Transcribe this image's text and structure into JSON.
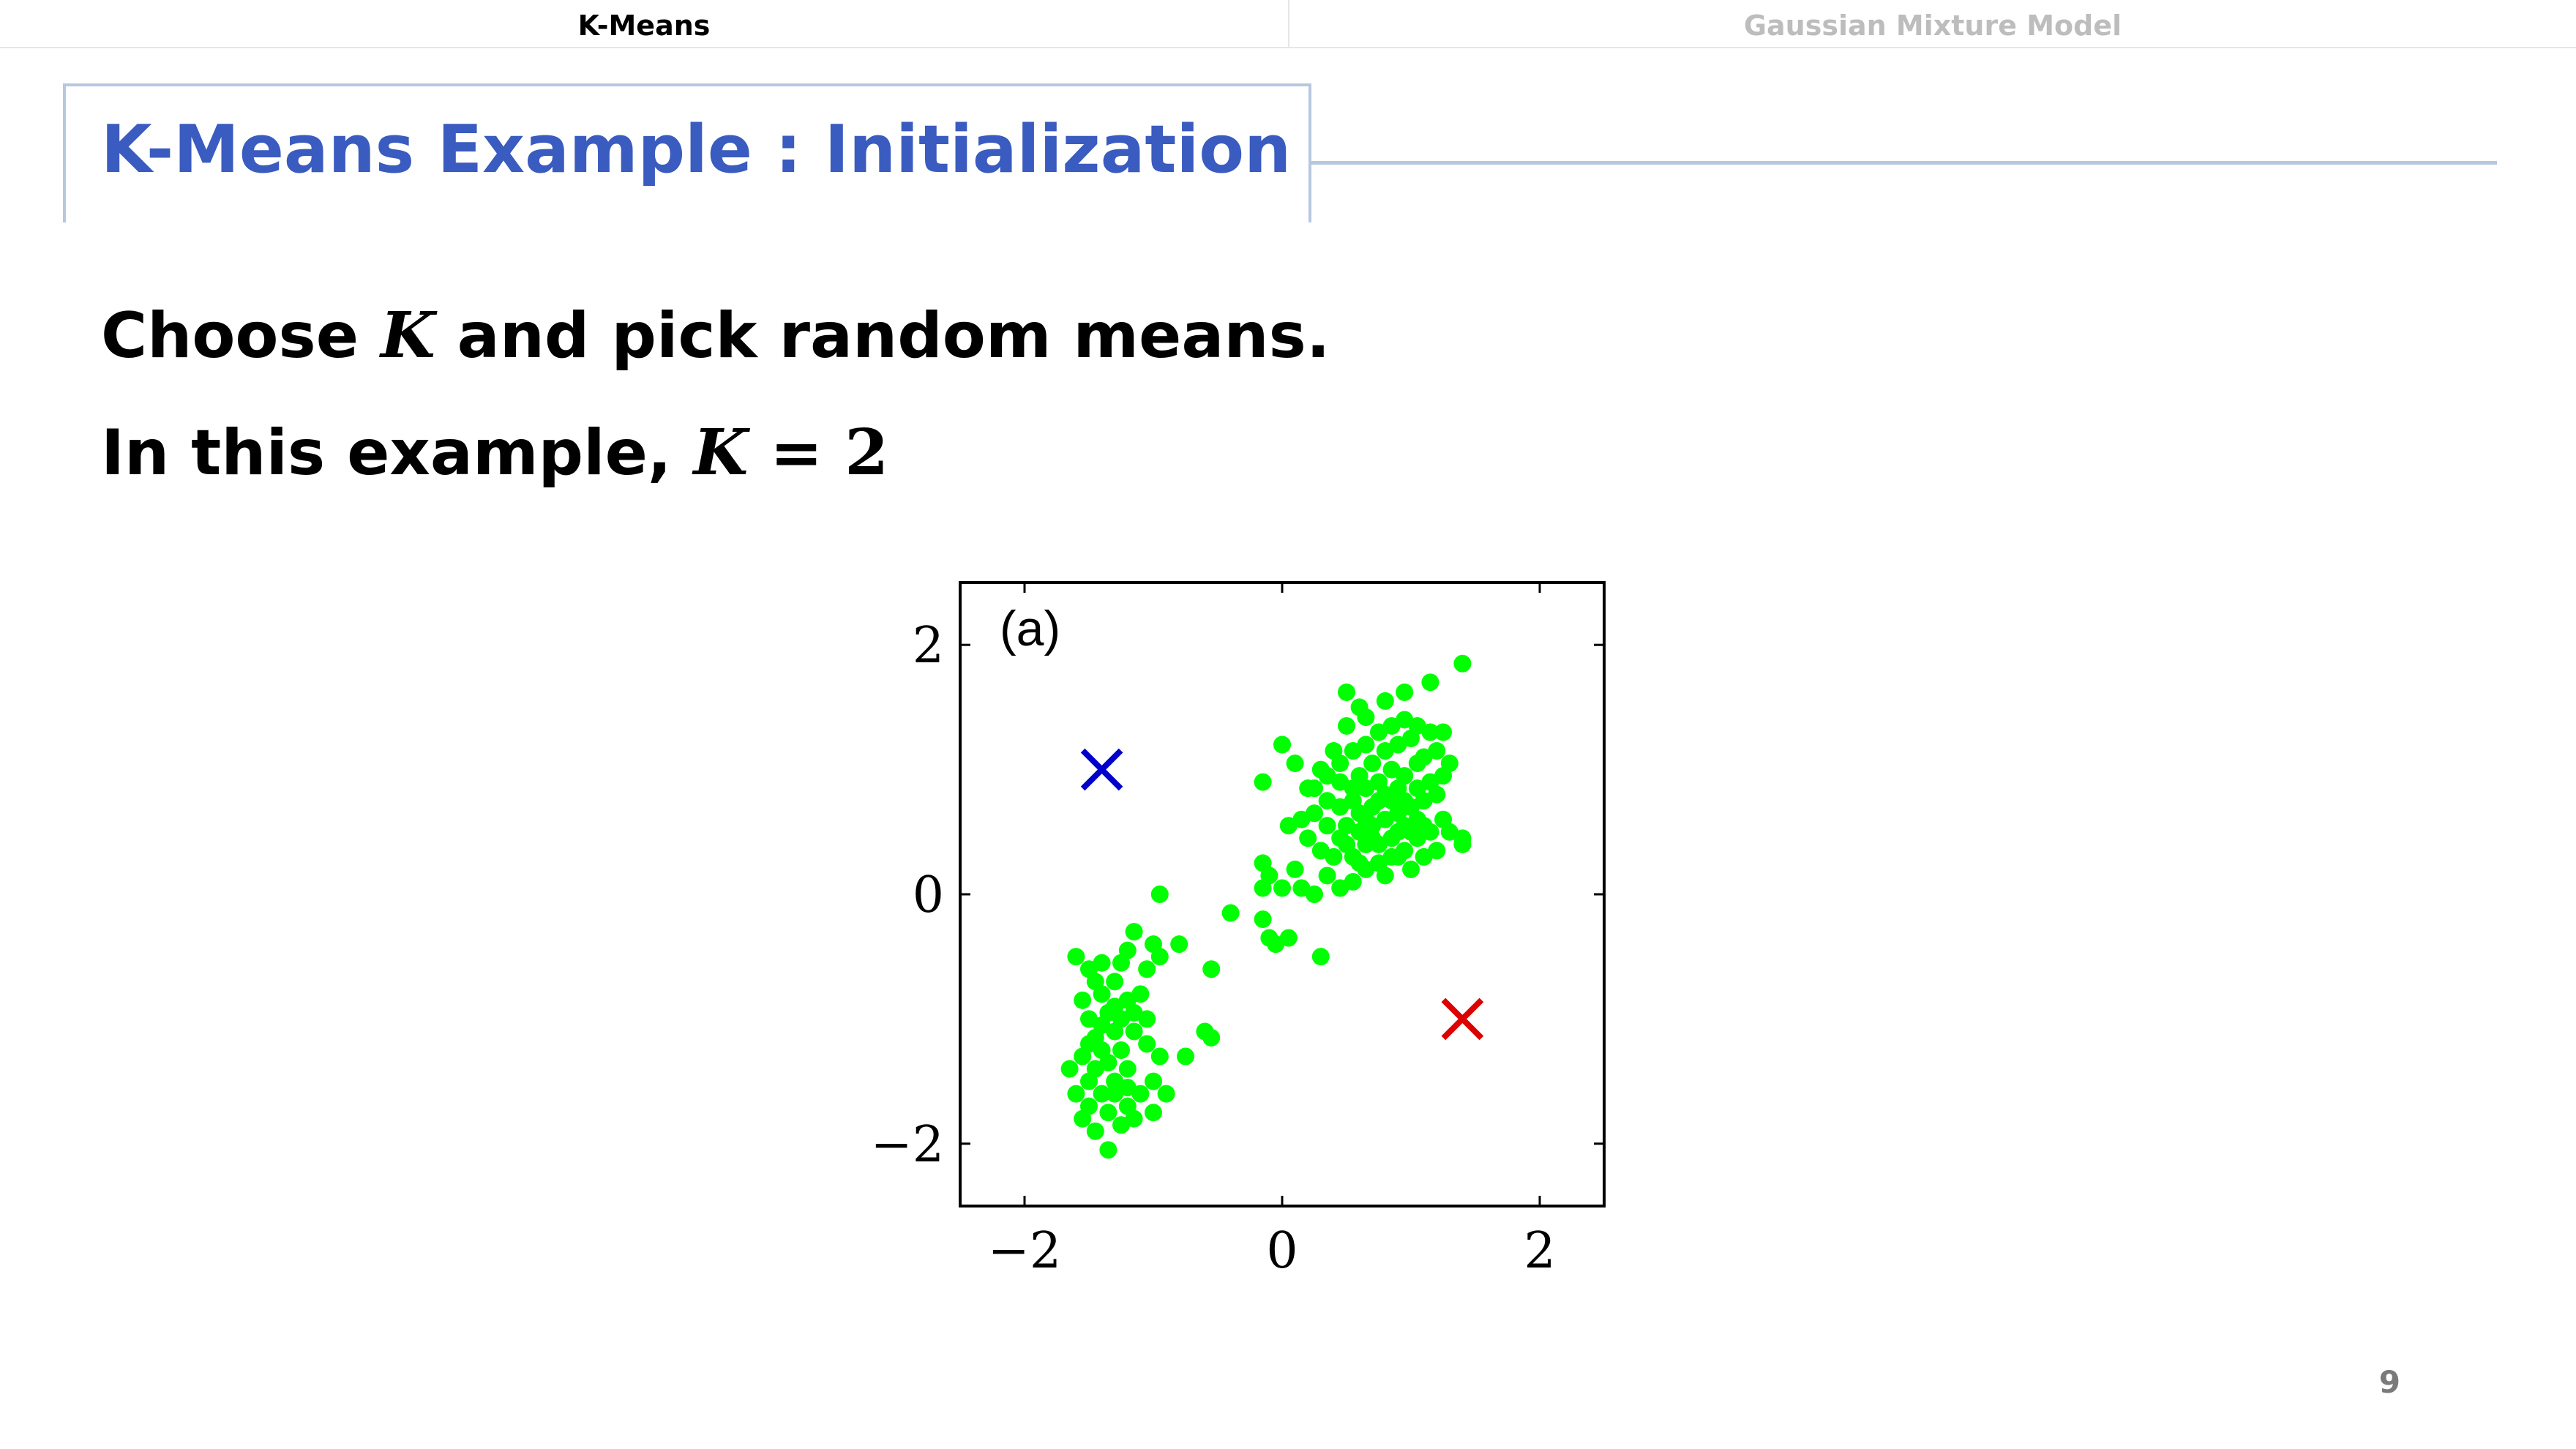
{
  "nav": {
    "tabs": [
      {
        "label": "K-Means",
        "active": true
      },
      {
        "label": "Gaussian Mixture Model",
        "active": false
      }
    ]
  },
  "slide": {
    "title": "K-Means Example : Initialization",
    "line1": {
      "before": "Choose ",
      "math": "K",
      "after": " and pick random means."
    },
    "line2": {
      "before": "In this example, ",
      "math_var": "K",
      "math_rest": " = 2"
    },
    "page_number": "9"
  },
  "colors": {
    "title": "#3a5bbf",
    "frame": "#b8c7e0",
    "points": "#00ff00",
    "mean_1": "#0000cc",
    "mean_2": "#dd0000"
  },
  "chart_data": {
    "type": "scatter",
    "panel_label": "(a)",
    "xlim": [
      -2.5,
      2.5
    ],
    "ylim": [
      -2.5,
      2.5
    ],
    "xticks": [
      -2,
      0,
      2
    ],
    "yticks": [
      -2,
      0,
      2
    ],
    "grid": false,
    "series": [
      {
        "marker": "circle",
        "color": "#00ff00",
        "points": [
          [
            -1.6,
            -0.5
          ],
          [
            -1.5,
            -0.6
          ],
          [
            -1.45,
            -0.7
          ],
          [
            -1.55,
            -0.85
          ],
          [
            -1.4,
            -0.8
          ],
          [
            -1.35,
            -0.95
          ],
          [
            -1.5,
            -1.0
          ],
          [
            -1.3,
            -0.7
          ],
          [
            -1.25,
            -0.55
          ],
          [
            -1.2,
            -0.45
          ],
          [
            -1.15,
            -0.3
          ],
          [
            -1.2,
            -0.85
          ],
          [
            -1.1,
            -0.8
          ],
          [
            -1.05,
            -1.0
          ],
          [
            -1.15,
            -1.1
          ],
          [
            -1.3,
            -1.1
          ],
          [
            -1.4,
            -1.05
          ],
          [
            -1.5,
            -1.2
          ],
          [
            -1.55,
            -1.3
          ],
          [
            -1.45,
            -1.4
          ],
          [
            -1.35,
            -1.35
          ],
          [
            -1.25,
            -1.25
          ],
          [
            -1.2,
            -1.4
          ],
          [
            -1.3,
            -1.5
          ],
          [
            -1.4,
            -1.6
          ],
          [
            -1.5,
            -1.7
          ],
          [
            -1.55,
            -1.8
          ],
          [
            -1.45,
            -1.9
          ],
          [
            -1.35,
            -2.05
          ],
          [
            -1.25,
            -1.85
          ],
          [
            -1.2,
            -1.7
          ],
          [
            -1.1,
            -1.6
          ],
          [
            -1.0,
            -1.5
          ],
          [
            -0.95,
            -1.3
          ],
          [
            -1.05,
            -1.2
          ],
          [
            -0.9,
            -1.6
          ],
          [
            -1.0,
            -1.75
          ],
          [
            -1.15,
            -1.8
          ],
          [
            -1.65,
            -1.4
          ],
          [
            -1.5,
            -1.5
          ],
          [
            -1.4,
            -1.25
          ],
          [
            -1.3,
            -0.9
          ],
          [
            -1.05,
            -0.6
          ],
          [
            -0.95,
            -0.5
          ],
          [
            -1.0,
            -0.4
          ],
          [
            -0.8,
            -0.4
          ],
          [
            -0.75,
            -1.3
          ],
          [
            -0.6,
            -1.1
          ],
          [
            -0.55,
            -1.15
          ],
          [
            -0.95,
            0.0
          ],
          [
            -1.2,
            -1.55
          ],
          [
            -1.35,
            -1.75
          ],
          [
            -1.25,
            -1.0
          ],
          [
            -1.4,
            -0.55
          ],
          [
            -1.6,
            -1.6
          ],
          [
            -1.45,
            -1.15
          ],
          [
            -1.15,
            -0.95
          ],
          [
            -1.3,
            -1.6
          ],
          [
            -0.55,
            -0.6
          ],
          [
            -0.4,
            -0.15
          ],
          [
            -0.15,
            -0.2
          ],
          [
            -0.1,
            -0.35
          ],
          [
            0.05,
            -0.35
          ],
          [
            0.3,
            -0.5
          ],
          [
            -0.05,
            -0.4
          ],
          [
            -0.15,
            0.05
          ],
          [
            0.0,
            0.05
          ],
          [
            0.1,
            0.2
          ],
          [
            -0.15,
            0.25
          ],
          [
            -0.15,
            0.9
          ],
          [
            0.0,
            1.2
          ],
          [
            0.1,
            1.05
          ],
          [
            0.2,
            0.85
          ],
          [
            0.35,
            0.95
          ],
          [
            0.45,
            1.05
          ],
          [
            0.55,
            1.15
          ],
          [
            0.65,
            1.2
          ],
          [
            0.75,
            1.3
          ],
          [
            0.85,
            1.35
          ],
          [
            0.95,
            1.4
          ],
          [
            1.05,
            1.35
          ],
          [
            1.15,
            1.3
          ],
          [
            1.25,
            1.3
          ],
          [
            0.5,
            1.35
          ],
          [
            0.6,
            1.5
          ],
          [
            0.8,
            1.55
          ],
          [
            0.5,
            1.62
          ],
          [
            0.65,
            1.42
          ],
          [
            1.0,
            1.25
          ],
          [
            1.1,
            1.1
          ],
          [
            1.2,
            1.15
          ],
          [
            1.3,
            1.05
          ],
          [
            1.4,
            1.85
          ],
          [
            1.15,
            1.7
          ],
          [
            0.95,
            1.62
          ],
          [
            1.05,
            1.05
          ],
          [
            0.95,
            0.95
          ],
          [
            0.85,
            1.0
          ],
          [
            0.75,
            0.9
          ],
          [
            0.65,
            0.85
          ],
          [
            0.55,
            0.75
          ],
          [
            0.45,
            0.7
          ],
          [
            0.35,
            0.75
          ],
          [
            0.25,
            0.65
          ],
          [
            0.15,
            0.6
          ],
          [
            0.05,
            0.55
          ],
          [
            0.2,
            0.45
          ],
          [
            0.3,
            0.35
          ],
          [
            0.4,
            0.3
          ],
          [
            0.5,
            0.4
          ],
          [
            0.6,
            0.5
          ],
          [
            0.7,
            0.55
          ],
          [
            0.8,
            0.6
          ],
          [
            0.9,
            0.65
          ],
          [
            1.0,
            0.7
          ],
          [
            1.1,
            0.75
          ],
          [
            1.2,
            0.8
          ],
          [
            1.25,
            0.6
          ],
          [
            1.15,
            0.5
          ],
          [
            1.05,
            0.45
          ],
          [
            0.95,
            0.35
          ],
          [
            0.85,
            0.3
          ],
          [
            0.75,
            0.25
          ],
          [
            0.65,
            0.2
          ],
          [
            0.55,
            0.1
          ],
          [
            0.45,
            0.05
          ],
          [
            0.35,
            0.15
          ],
          [
            0.25,
            0.0
          ],
          [
            0.15,
            0.05
          ],
          [
            -0.1,
            0.15
          ],
          [
            0.8,
            0.15
          ],
          [
            1.0,
            0.2
          ],
          [
            1.1,
            0.3
          ],
          [
            1.3,
            0.5
          ],
          [
            1.4,
            0.45
          ],
          [
            1.4,
            0.4
          ],
          [
            0.9,
            0.85
          ],
          [
            0.7,
            0.7
          ],
          [
            0.6,
            0.65
          ],
          [
            0.5,
            0.55
          ],
          [
            0.85,
            0.45
          ],
          [
            0.75,
            0.4
          ],
          [
            0.95,
            0.55
          ],
          [
            1.05,
            0.6
          ],
          [
            0.65,
            0.4
          ],
          [
            0.55,
            0.3
          ],
          [
            0.7,
            1.05
          ],
          [
            0.8,
            1.15
          ],
          [
            0.9,
            1.2
          ],
          [
            0.4,
            1.15
          ],
          [
            0.3,
            1.0
          ],
          [
            0.85,
            0.75
          ],
          [
            0.75,
            0.75
          ],
          [
            1.15,
            0.9
          ],
          [
            1.25,
            0.95
          ],
          [
            0.6,
            0.95
          ],
          [
            0.95,
            0.75
          ],
          [
            1.05,
            0.85
          ],
          [
            0.45,
            0.9
          ],
          [
            0.35,
            0.55
          ],
          [
            0.7,
            0.45
          ],
          [
            0.9,
            0.5
          ],
          [
            1.2,
            0.35
          ],
          [
            1.0,
            0.5
          ],
          [
            0.55,
            0.85
          ],
          [
            0.65,
            0.6
          ],
          [
            0.8,
            0.8
          ],
          [
            0.9,
            0.3
          ],
          [
            0.6,
            0.25
          ],
          [
            0.45,
            0.45
          ],
          [
            1.1,
            0.55
          ],
          [
            0.25,
            0.85
          ]
        ]
      },
      {
        "marker": "x",
        "color": "#0000cc",
        "points": [
          [
            -1.4,
            1.0
          ]
        ]
      },
      {
        "marker": "x",
        "color": "#dd0000",
        "points": [
          [
            1.4,
            -1.0
          ]
        ]
      }
    ]
  }
}
